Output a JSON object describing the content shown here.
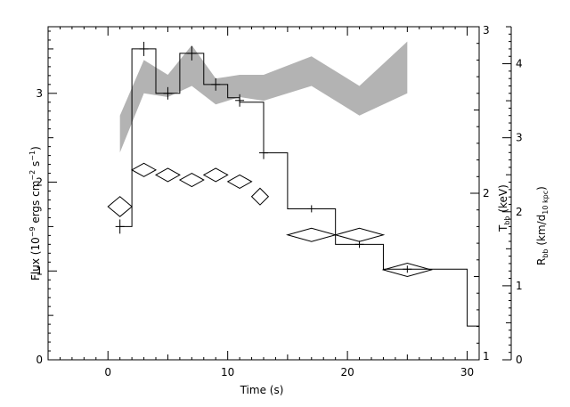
{
  "chart_data": {
    "type": "line",
    "xlabel": "Time (s)",
    "ylabel": "Flux (10⁻⁹ ergs cm⁻² s⁻¹)",
    "ylabel_parts": {
      "a": "Flux (10",
      "b": "−9",
      "c": " ergs cm",
      "d": "−2",
      "e": " s",
      "f": "−1",
      "g": ")"
    },
    "xlim": [
      -5,
      31
    ],
    "ylim": [
      0,
      3.75
    ],
    "x_ticks": [
      0,
      10,
      20,
      30
    ],
    "y_ticks": [
      0,
      1,
      2,
      3
    ],
    "right_axis_1": {
      "label_main": "T",
      "label_sub": "bb",
      "label_rest": " (keV)",
      "range": [
        1,
        3
      ],
      "ticks": [
        1,
        2,
        3
      ]
    },
    "right_axis_2": {
      "label_main": "R",
      "label_sub1": "bb",
      "label_mid": " (km/d",
      "label_sub2": "10 kpc",
      "label_rest": ")",
      "range": [
        0,
        4.5
      ],
      "ticks": [
        0,
        1,
        2,
        3,
        4
      ]
    },
    "series": [
      {
        "kind": "flux_histogram",
        "bins": [
          {
            "x0": 1,
            "x1": 2,
            "y": 1.5
          },
          {
            "x0": 2,
            "x1": 4,
            "y": 3.5
          },
          {
            "x0": 4,
            "x1": 6,
            "y": 3.0
          },
          {
            "x0": 6,
            "x1": 8,
            "y": 3.45
          },
          {
            "x0": 8,
            "x1": 10,
            "y": 3.1
          },
          {
            "x0": 10,
            "x1": 11,
            "y": 2.95
          },
          {
            "x0": 11,
            "x1": 13,
            "y": 2.9
          },
          {
            "x0": 13,
            "x1": 15,
            "y": 2.33
          },
          {
            "x0": 15,
            "x1": 19,
            "y": 1.7
          },
          {
            "x0": 19,
            "x1": 23,
            "y": 1.3
          },
          {
            "x0": 23,
            "x1": 27,
            "y": 1.02
          },
          {
            "x0": 27,
            "x1": 30,
            "y": 1.02
          },
          {
            "x0": 30,
            "x1": 31,
            "y": 0.38
          }
        ],
        "errors": [
          {
            "x": 1,
            "y": 1.5,
            "e": 0.08
          },
          {
            "x": 3,
            "y": 3.5,
            "e": 0.08
          },
          {
            "x": 5,
            "y": 3.0,
            "e": 0.07
          },
          {
            "x": 7,
            "y": 3.45,
            "e": 0.08
          },
          {
            "x": 9,
            "y": 3.1,
            "e": 0.07
          },
          {
            "x": 11,
            "y": 2.92,
            "e": 0.07
          },
          {
            "x": 13,
            "y": 2.33,
            "e": 0.07
          },
          {
            "x": 17,
            "y": 1.7,
            "e": 0.04
          },
          {
            "x": 21,
            "y": 1.3,
            "e": 0.04
          },
          {
            "x": 25,
            "y": 1.02,
            "e": 0.04
          }
        ]
      },
      {
        "kind": "temperature_diamonds",
        "points": [
          {
            "x": 1,
            "xe": 1,
            "y": 1.92,
            "ye": 0.06
          },
          {
            "x": 3,
            "xe": 1,
            "y": 2.14,
            "ye": 0.04
          },
          {
            "x": 5,
            "xe": 1,
            "y": 2.11,
            "ye": 0.04
          },
          {
            "x": 7,
            "xe": 1,
            "y": 2.08,
            "ye": 0.04
          },
          {
            "x": 9,
            "xe": 1,
            "y": 2.11,
            "ye": 0.04
          },
          {
            "x": 11,
            "xe": 1,
            "y": 2.07,
            "ye": 0.04
          },
          {
            "x": 12.7,
            "xe": 0.7,
            "y": 1.98,
            "ye": 0.05
          },
          {
            "x": 17,
            "xe": 2,
            "y": 1.75,
            "ye": 0.04
          },
          {
            "x": 21,
            "xe": 2,
            "y": 1.75,
            "ye": 0.04
          },
          {
            "x": 25,
            "xe": 2,
            "y": 1.54,
            "ye": 0.04
          }
        ]
      },
      {
        "kind": "radius_band",
        "x": [
          1,
          3,
          5,
          7,
          9,
          11,
          13,
          17,
          21,
          25
        ],
        "y_low": [
          2.8,
          3.6,
          3.55,
          3.7,
          3.45,
          3.55,
          3.5,
          3.7,
          3.3,
          3.6
        ],
        "y_high": [
          3.3,
          4.05,
          3.85,
          4.25,
          3.8,
          3.85,
          3.85,
          4.1,
          3.7,
          4.3
        ]
      }
    ]
  }
}
